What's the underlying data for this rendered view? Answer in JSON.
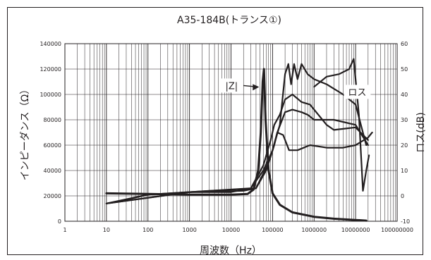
{
  "chart_data": {
    "type": "line",
    "title": "A35-184B(トランス①)",
    "xlabel": "周波数（Hz）",
    "ylabel": "インピーダンス（Ω）",
    "y2label": "ロス(dB)",
    "xscale": "log",
    "xlim": [
      1,
      100000000
    ],
    "ylim": [
      0,
      140000
    ],
    "y2lim": [
      -10,
      60
    ],
    "grid": true,
    "x_ticks": [
      "1",
      "10",
      "100",
      "1000",
      "10000",
      "100000",
      "1000000",
      "10000000",
      "100000000"
    ],
    "y_ticks": [
      "0",
      "20000",
      "40000",
      "60000",
      "80000",
      "100000",
      "120000",
      "140000"
    ],
    "y2_ticks": [
      "-10",
      "0",
      "10",
      "20",
      "30",
      "40",
      "50",
      "60"
    ],
    "annotations": [
      {
        "text": "|Z|",
        "x": 60000,
        "y": 107000
      },
      {
        "text": "ロス",
        "x": 5000000,
        "y": 102000
      }
    ],
    "series": [
      {
        "name": "|Z|",
        "axis": "left",
        "points": [
          [
            10,
            22000
          ],
          [
            100,
            21500
          ],
          [
            1000,
            21000
          ],
          [
            10000,
            21000
          ],
          [
            25000,
            21500
          ],
          [
            35000,
            25000
          ],
          [
            45000,
            40000
          ],
          [
            52000,
            70000
          ],
          [
            58000,
            110000
          ],
          [
            62000,
            120000
          ],
          [
            68000,
            80000
          ],
          [
            80000,
            40000
          ],
          [
            100000,
            22000
          ],
          [
            150000,
            13000
          ],
          [
            300000,
            7000
          ],
          [
            1000000,
            3500
          ],
          [
            3000000,
            2000
          ],
          [
            10000000,
            1000
          ],
          [
            18000000,
            500
          ]
        ]
      },
      {
        "name": "ロス 1",
        "axis": "right",
        "points": [
          [
            10,
            -3
          ],
          [
            30,
            -1.5
          ],
          [
            100,
            0.5
          ],
          [
            1000,
            1.5
          ],
          [
            10000,
            1.5
          ],
          [
            30000,
            3
          ],
          [
            60000,
            10
          ],
          [
            100000,
            18
          ],
          [
            150000,
            28
          ],
          [
            200000,
            48
          ],
          [
            240000,
            52
          ],
          [
            280000,
            44
          ],
          [
            330000,
            52
          ],
          [
            400000,
            46
          ],
          [
            500000,
            52
          ],
          [
            700000,
            48
          ],
          [
            1000000,
            46
          ],
          [
            2000000,
            44
          ],
          [
            5000000,
            40
          ],
          [
            10000000,
            36
          ],
          [
            18000000,
            20
          ]
        ]
      },
      {
        "name": "ロス 2",
        "axis": "right",
        "points": [
          [
            10,
            -3
          ],
          [
            100,
            0.5
          ],
          [
            1000,
            1.5
          ],
          [
            20000,
            2
          ],
          [
            40000,
            3
          ],
          [
            70000,
            10
          ],
          [
            100000,
            18
          ],
          [
            130000,
            25
          ],
          [
            200000,
            33
          ],
          [
            300000,
            34
          ],
          [
            500000,
            33
          ],
          [
            700000,
            32
          ],
          [
            1000000,
            30
          ],
          [
            3000000,
            30
          ],
          [
            10000000,
            28
          ],
          [
            20000000,
            20
          ]
        ]
      },
      {
        "name": "ロス 3",
        "axis": "right",
        "points": [
          [
            10,
            -3
          ],
          [
            1000,
            1.5
          ],
          [
            30000,
            3
          ],
          [
            60000,
            12
          ],
          [
            90000,
            22
          ],
          [
            110000,
            28
          ],
          [
            150000,
            32
          ],
          [
            200000,
            38
          ],
          [
            300000,
            40
          ],
          [
            500000,
            37
          ],
          [
            800000,
            36
          ],
          [
            2000000,
            28
          ],
          [
            3000000,
            26
          ],
          [
            10000000,
            27
          ],
          [
            20000000,
            22
          ]
        ]
      },
      {
        "name": "ロス 4",
        "axis": "right",
        "points": [
          [
            10,
            -3
          ],
          [
            1000,
            1.5
          ],
          [
            40000,
            3
          ],
          [
            80000,
            13
          ],
          [
            110000,
            20
          ],
          [
            130000,
            25
          ],
          [
            180000,
            24
          ],
          [
            250000,
            18
          ],
          [
            400000,
            18
          ],
          [
            800000,
            20
          ],
          [
            2000000,
            19
          ],
          [
            5000000,
            19
          ],
          [
            10000000,
            20
          ],
          [
            20000000,
            23
          ],
          [
            25000000,
            25
          ]
        ]
      },
      {
        "name": "ロス 5",
        "axis": "right",
        "points": [
          [
            1000000,
            43
          ],
          [
            2000000,
            47
          ],
          [
            4000000,
            48
          ],
          [
            7000000,
            50
          ],
          [
            9000000,
            54
          ],
          [
            12000000,
            32
          ],
          [
            15000000,
            2
          ],
          [
            18000000,
            10
          ],
          [
            21000000,
            16
          ]
        ]
      }
    ]
  }
}
